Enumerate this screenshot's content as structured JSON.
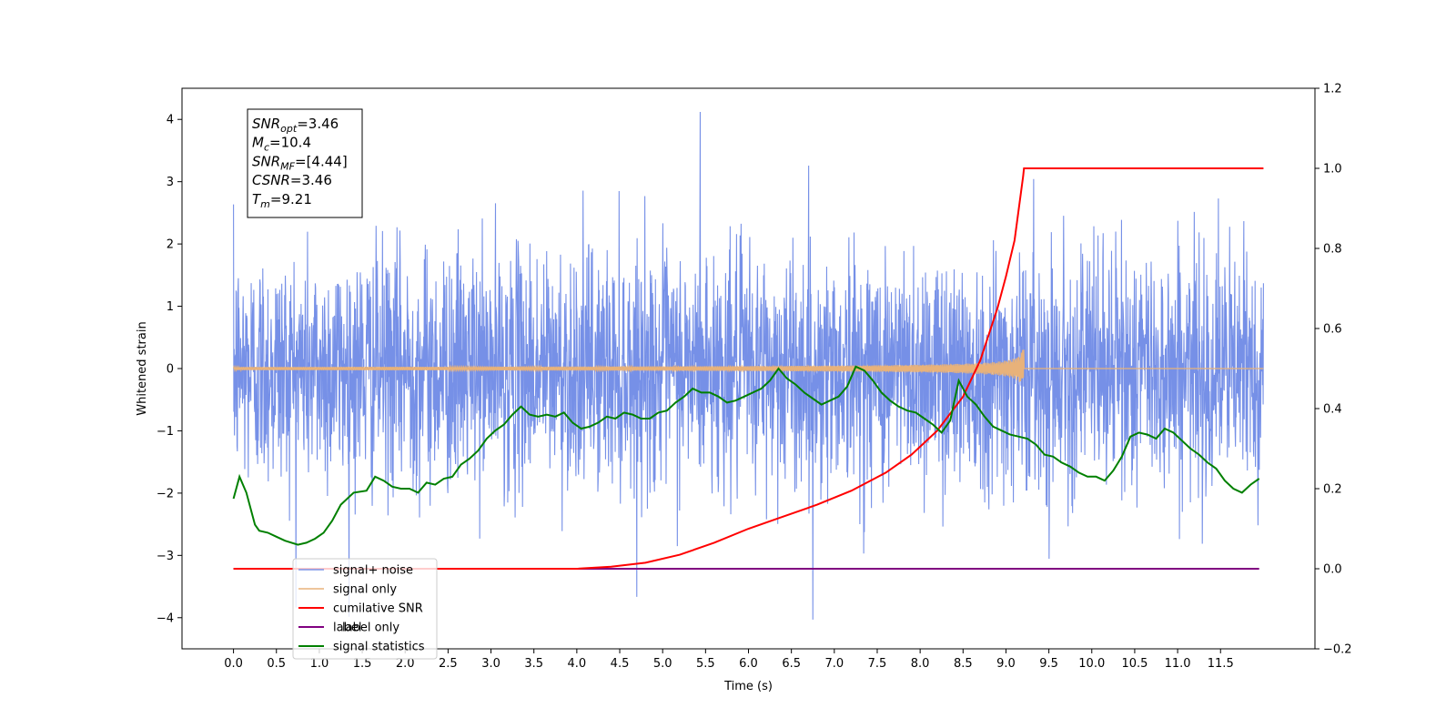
{
  "chart_data": {
    "type": "line",
    "xlabel": "Time (s)",
    "ylabel_left": "Whitened strain",
    "ylabel_right": "",
    "xlim": [
      -0.6,
      12.6
    ],
    "ylim_left": [
      -4.5,
      4.5
    ],
    "ylim_right": [
      -0.2,
      1.2
    ],
    "x_ticks": [
      0.0,
      0.5,
      1.0,
      1.5,
      2.0,
      2.5,
      3.0,
      3.5,
      4.0,
      4.5,
      5.0,
      5.5,
      6.0,
      6.5,
      7.0,
      7.5,
      8.0,
      8.5,
      9.0,
      9.5,
      10.0,
      10.5,
      11.0,
      11.5
    ],
    "x_tick_labels": [
      "0.0",
      "0.5",
      "1.0",
      "1.5",
      "2.0",
      "2.5",
      "3.0",
      "3.5",
      "4.0",
      "4.5",
      "5.0",
      "5.5",
      "6.0",
      "6.5",
      "7.0",
      "7.5",
      "8.0",
      "8.5",
      "9.0",
      "9.5",
      "10.0",
      "10.5",
      "11.0",
      "11.5"
    ],
    "y_left_ticks": [
      -4,
      -3,
      -2,
      -1,
      0,
      1,
      2,
      3,
      4
    ],
    "y_left_tick_labels": [
      "−4",
      "−3",
      "−2",
      "−1",
      "0",
      "1",
      "2",
      "3",
      "4"
    ],
    "y_right_ticks": [
      -0.2,
      0.0,
      0.2,
      0.4,
      0.6,
      0.8,
      1.0,
      1.2
    ],
    "y_right_tick_labels": [
      "−0.2",
      "0.0",
      "0.2",
      "0.4",
      "0.6",
      "0.8",
      "1.0",
      "1.2"
    ],
    "grid": false,
    "legend_location": "lower-left",
    "info_box": {
      "lines": [
        {
          "base": "SNR",
          "sub": "opt",
          "value": "=3.46"
        },
        {
          "base": "M",
          "sub": "c",
          "value": "=10.4"
        },
        {
          "base": "SNR",
          "sub": "MF",
          "value": "=[4.44]"
        },
        {
          "base": "CSNR",
          "sub": "",
          "value": "=3.46"
        },
        {
          "base": "T",
          "sub": "m",
          "value": "=9.21"
        }
      ]
    },
    "series": [
      {
        "name": "signal+ noise",
        "axis": "left",
        "color": "#6f8ae6",
        "style": "noise",
        "x_range": [
          0.0,
          12.0
        ],
        "typical_amplitude": 1.6,
        "max_value": 4.12,
        "min_value": -4.03
      },
      {
        "name": "signal only",
        "axis": "left",
        "color": "#e8b27a",
        "style": "chirp",
        "x_range": [
          0.0,
          12.0
        ],
        "merger_time": 9.21,
        "peak_amplitude": 0.65
      },
      {
        "name": "cumilative SNR",
        "axis": "right",
        "color": "#ff0000",
        "x": [
          0.0,
          4.0,
          4.4,
          4.8,
          5.2,
          5.6,
          6.0,
          6.4,
          6.8,
          7.2,
          7.6,
          7.9,
          8.2,
          8.5,
          8.7,
          8.9,
          9.0,
          9.1,
          9.15,
          9.2,
          9.21,
          12.0
        ],
        "y": [
          0.0,
          0.0,
          0.005,
          0.015,
          0.035,
          0.065,
          0.1,
          0.13,
          0.16,
          0.195,
          0.24,
          0.285,
          0.345,
          0.43,
          0.52,
          0.65,
          0.73,
          0.82,
          0.9,
          0.98,
          1.0,
          1.0
        ]
      },
      {
        "name": "label",
        "axis": "right",
        "color": "#800080",
        "x": [
          0.0,
          11.95
        ],
        "y": [
          0.0,
          0.0
        ]
      },
      {
        "name": "label only",
        "axis": "right",
        "color": "#c8c8c8",
        "legend_only": true,
        "x": [],
        "y": []
      },
      {
        "name": "signal statistics",
        "axis": "right",
        "color": "#008000",
        "x": [
          0.0,
          0.07,
          0.15,
          0.25,
          0.3,
          0.4,
          0.5,
          0.6,
          0.75,
          0.85,
          0.95,
          1.05,
          1.15,
          1.25,
          1.4,
          1.55,
          1.65,
          1.75,
          1.85,
          1.95,
          2.05,
          2.15,
          2.25,
          2.35,
          2.45,
          2.55,
          2.65,
          2.75,
          2.85,
          2.95,
          3.05,
          3.15,
          3.25,
          3.35,
          3.45,
          3.55,
          3.65,
          3.75,
          3.85,
          3.95,
          4.05,
          4.15,
          4.25,
          4.35,
          4.45,
          4.55,
          4.65,
          4.75,
          4.85,
          4.95,
          5.05,
          5.15,
          5.25,
          5.35,
          5.45,
          5.55,
          5.65,
          5.75,
          5.85,
          5.95,
          6.05,
          6.15,
          6.25,
          6.35,
          6.45,
          6.55,
          6.65,
          6.75,
          6.85,
          6.95,
          7.05,
          7.15,
          7.25,
          7.35,
          7.45,
          7.55,
          7.65,
          7.75,
          7.85,
          7.95,
          8.05,
          8.15,
          8.25,
          8.35,
          8.45,
          8.55,
          8.65,
          8.75,
          8.85,
          8.95,
          9.05,
          9.15,
          9.25,
          9.35,
          9.45,
          9.55,
          9.65,
          9.75,
          9.85,
          9.95,
          10.05,
          10.15,
          10.25,
          10.35,
          10.45,
          10.55,
          10.65,
          10.75,
          10.85,
          10.95,
          11.05,
          11.15,
          11.25,
          11.35,
          11.45,
          11.55,
          11.65,
          11.75,
          11.85,
          11.95
        ],
        "y": [
          0.175,
          0.23,
          0.19,
          0.11,
          0.095,
          0.09,
          0.08,
          0.07,
          0.06,
          0.065,
          0.075,
          0.09,
          0.12,
          0.16,
          0.19,
          0.195,
          0.23,
          0.22,
          0.205,
          0.2,
          0.2,
          0.19,
          0.215,
          0.21,
          0.225,
          0.23,
          0.26,
          0.275,
          0.295,
          0.325,
          0.345,
          0.36,
          0.385,
          0.405,
          0.385,
          0.38,
          0.385,
          0.38,
          0.39,
          0.365,
          0.35,
          0.355,
          0.365,
          0.38,
          0.375,
          0.39,
          0.385,
          0.375,
          0.375,
          0.39,
          0.395,
          0.415,
          0.43,
          0.45,
          0.44,
          0.44,
          0.43,
          0.415,
          0.42,
          0.43,
          0.44,
          0.45,
          0.47,
          0.5,
          0.475,
          0.46,
          0.44,
          0.425,
          0.41,
          0.42,
          0.43,
          0.455,
          0.505,
          0.495,
          0.47,
          0.44,
          0.42,
          0.405,
          0.395,
          0.39,
          0.375,
          0.36,
          0.34,
          0.37,
          0.47,
          0.43,
          0.41,
          0.38,
          0.355,
          0.345,
          0.335,
          0.33,
          0.325,
          0.31,
          0.285,
          0.28,
          0.265,
          0.255,
          0.24,
          0.23,
          0.23,
          0.22,
          0.245,
          0.28,
          0.33,
          0.34,
          0.335,
          0.325,
          0.35,
          0.34,
          0.32,
          0.3,
          0.285,
          0.265,
          0.25,
          0.22,
          0.2,
          0.19,
          0.21,
          0.225
        ]
      }
    ]
  }
}
